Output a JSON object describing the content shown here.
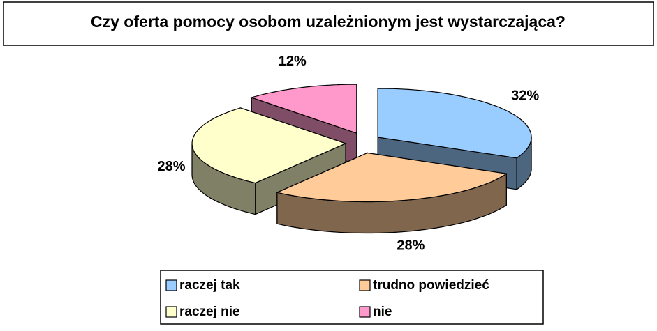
{
  "chart_data": {
    "type": "pie3d",
    "title": "Czy oferta pomocy osobom uzależnionym jest wystarczająca?",
    "categories": [
      "raczej tak",
      "trudno powiedzieć",
      "raczej nie",
      "nie"
    ],
    "values": [
      32,
      28,
      28,
      12
    ],
    "value_labels": [
      "32%",
      "28%",
      "28%",
      "12%"
    ],
    "colors": [
      "#99ccff",
      "#ffcc99",
      "#ffffcc",
      "#ff99cc"
    ]
  }
}
